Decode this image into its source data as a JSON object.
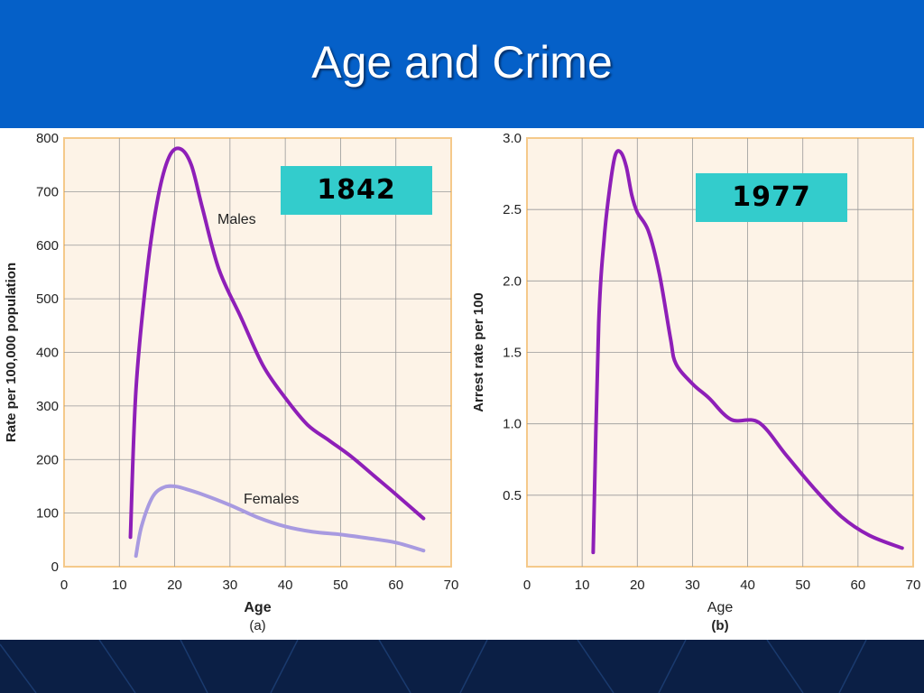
{
  "slide": {
    "title": "Age and Crime"
  },
  "colors": {
    "header_bg": "#0560c8",
    "footer_bg": "#0b1f45",
    "plot_bg": "#fdf3e7",
    "plot_border": "#f5c98a",
    "grid": "#999999",
    "males_line": "#8e1fb8",
    "females_line": "#a89ae0",
    "badge_bg": "#33cccc"
  },
  "chart_data": [
    {
      "type": "line",
      "badge": "1842",
      "panel_label": "(a)",
      "xlabel": "Age",
      "ylabel": "Rate per 100,000 population",
      "xlim": [
        0,
        70
      ],
      "ylim": [
        0,
        800
      ],
      "xticks": [
        0,
        10,
        20,
        30,
        40,
        50,
        60,
        70
      ],
      "yticks": [
        0,
        100,
        200,
        300,
        400,
        500,
        600,
        700,
        800
      ],
      "grid": true,
      "series": [
        {
          "name": "Males",
          "x": [
            12,
            13,
            15,
            17,
            19,
            21,
            23,
            25,
            28,
            32,
            36,
            40,
            44,
            48,
            52,
            56,
            60,
            65
          ],
          "y": [
            55,
            330,
            550,
            690,
            765,
            780,
            750,
            670,
            555,
            465,
            375,
            315,
            265,
            235,
            205,
            170,
            135,
            90
          ]
        },
        {
          "name": "Females",
          "x": [
            13,
            14,
            16,
            18,
            20,
            22,
            25,
            30,
            35,
            40,
            45,
            50,
            55,
            60,
            65
          ],
          "y": [
            20,
            75,
            130,
            148,
            150,
            145,
            135,
            115,
            92,
            75,
            65,
            60,
            53,
            45,
            30
          ]
        }
      ]
    },
    {
      "type": "line",
      "badge": "1977",
      "panel_label": "(b)",
      "xlabel": "Age",
      "ylabel": "Arrest rate per 100",
      "xlim": [
        0,
        70
      ],
      "ylim": [
        0,
        3.0
      ],
      "xticks": [
        0,
        10,
        20,
        30,
        40,
        50,
        60,
        70
      ],
      "yticks": [
        0.5,
        1.0,
        1.5,
        2.0,
        2.5,
        3.0
      ],
      "grid": true,
      "series": [
        {
          "x": [
            12,
            13,
            14,
            15,
            16,
            17,
            18,
            19,
            20,
            22,
            24,
            26,
            27,
            30,
            33,
            37,
            42,
            47,
            52,
            57,
            62,
            68
          ],
          "y": [
            0.1,
            1.7,
            2.3,
            2.65,
            2.88,
            2.9,
            2.8,
            2.6,
            2.48,
            2.35,
            2.05,
            1.6,
            1.42,
            1.28,
            1.18,
            1.03,
            1.01,
            0.78,
            0.55,
            0.35,
            0.22,
            0.13
          ]
        }
      ]
    }
  ]
}
